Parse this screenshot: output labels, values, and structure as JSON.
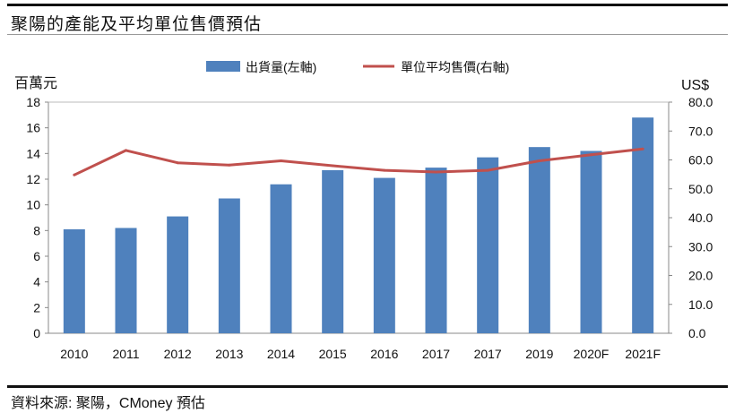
{
  "title": "聚陽的產能及平均單位售價預估",
  "source": "資料來源: 聚陽，CMoney 預估",
  "colors": {
    "bar": "#4f81bd",
    "line": "#c0504d",
    "grid": "#d9d9d9"
  },
  "chart_data": {
    "type": "bar+line",
    "categories": [
      "2010",
      "2011",
      "2012",
      "2013",
      "2014",
      "2015",
      "2016",
      "2017",
      "2017",
      "2019",
      "2020F",
      "2021F"
    ],
    "series": [
      {
        "name": "出貨量(左軸)",
        "type": "bar",
        "axis": "left",
        "values": [
          8.1,
          8.2,
          9.1,
          10.5,
          11.6,
          12.7,
          12.1,
          12.9,
          13.7,
          14.5,
          14.2,
          16.8
        ]
      },
      {
        "name": "單位平均售價(右軸)",
        "type": "line",
        "axis": "right",
        "values": [
          54.8,
          63.3,
          59.0,
          58.2,
          59.7,
          58.0,
          56.4,
          55.8,
          56.4,
          59.7,
          61.8,
          63.8
        ]
      }
    ],
    "y_left": {
      "label": "百萬元",
      "min": 0,
      "max": 18,
      "ticks": [
        "0",
        "2",
        "4",
        "6",
        "8",
        "10",
        "12",
        "14",
        "16",
        "18"
      ]
    },
    "y_right": {
      "label": "US$",
      "min": 0,
      "max": 80,
      "ticks": [
        "0.0",
        "10.0",
        "20.0",
        "30.0",
        "40.0",
        "50.0",
        "60.0",
        "70.0",
        "80.0"
      ]
    },
    "grid": false,
    "legend": "top"
  }
}
